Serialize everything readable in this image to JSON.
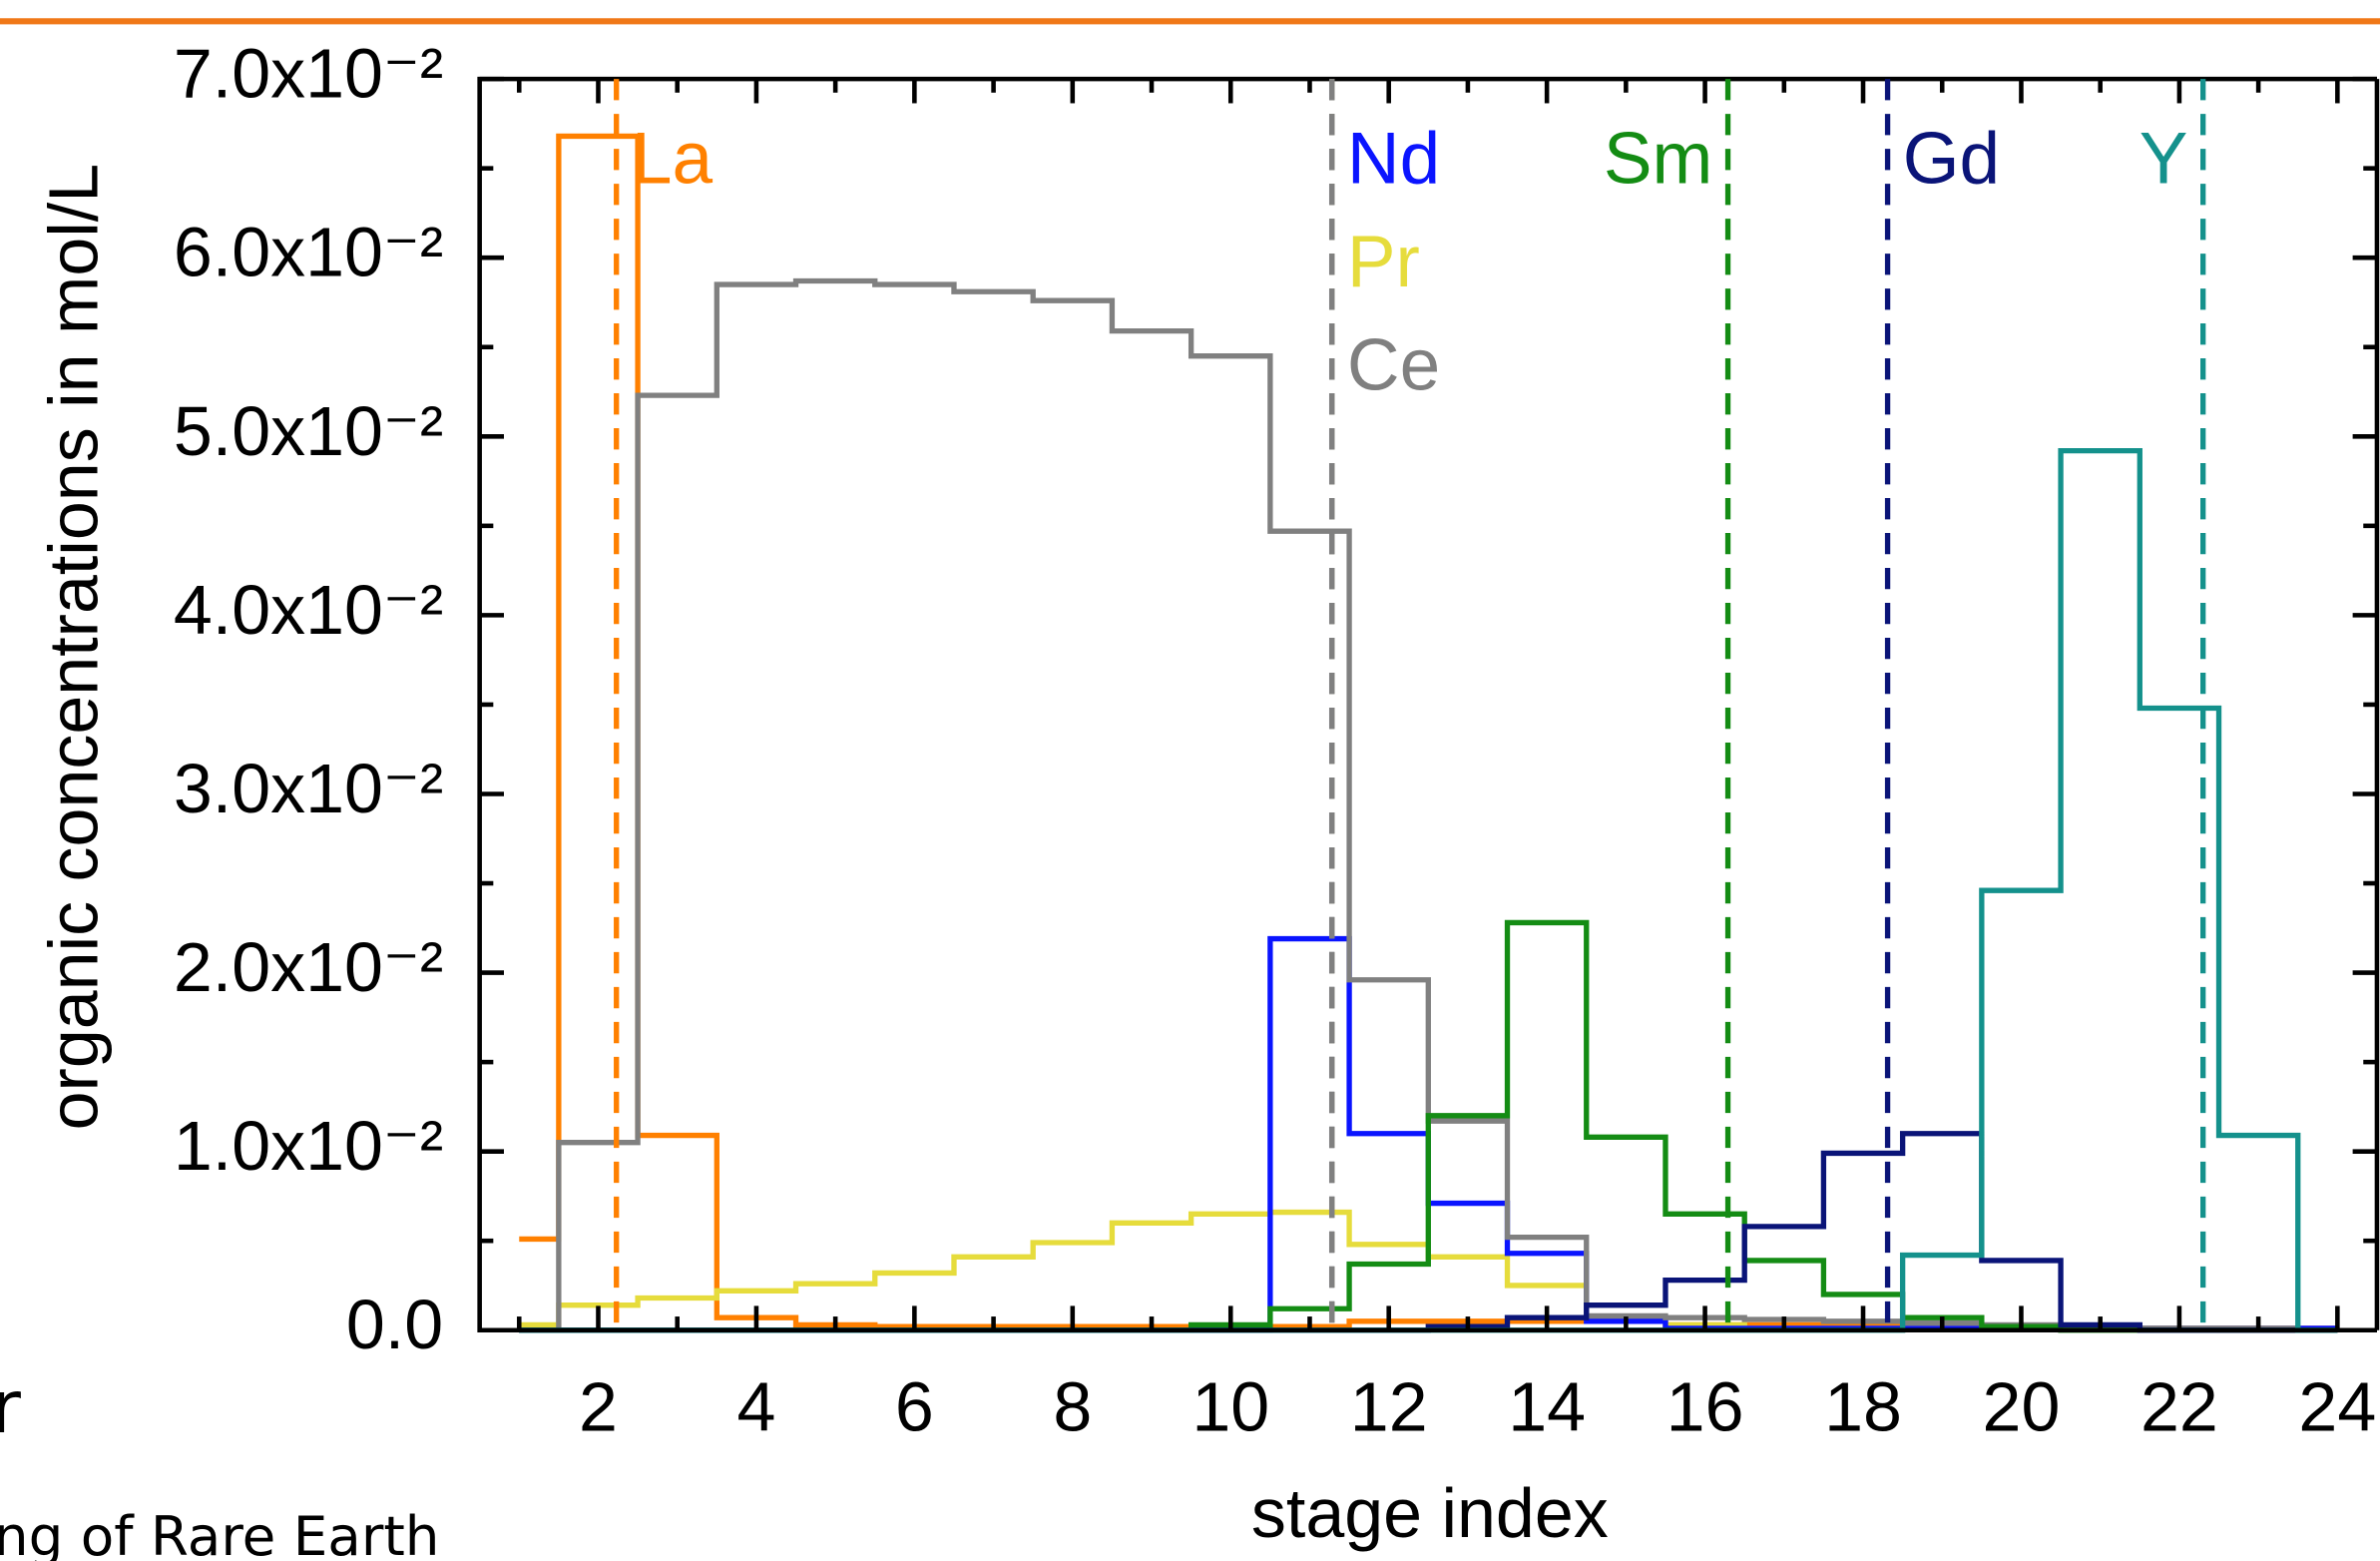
{
  "slide_text": [
    "r",
    "ng of Rare Earth"
  ],
  "chart_data": {
    "type": "step",
    "x_label": "stage index",
    "y_label": "organic concentrations in mol/L",
    "x": [
      1,
      2,
      3,
      4,
      5,
      6,
      7,
      8,
      9,
      10,
      11,
      12,
      13,
      14,
      15,
      16,
      17,
      18,
      19,
      20,
      21,
      22,
      23,
      24
    ],
    "xlim": [
      0.5,
      24.5
    ],
    "xticks": [
      2,
      4,
      6,
      8,
      10,
      12,
      14,
      16,
      18,
      20,
      22,
      24
    ],
    "xminorticks": [
      1,
      3,
      5,
      7,
      9,
      11,
      13,
      15,
      17,
      19,
      21,
      23
    ],
    "ylim": [
      0,
      0.07
    ],
    "yticks": [
      {
        "value": 0,
        "label": "0.0"
      },
      {
        "value": 0.01,
        "label": "1.0x10⁻²"
      },
      {
        "value": 0.02,
        "label": "2.0x10⁻²"
      },
      {
        "value": 0.03,
        "label": "3.0x10⁻²"
      },
      {
        "value": 0.04,
        "label": "4.0x10⁻²"
      },
      {
        "value": 0.05,
        "label": "5.0x10⁻²"
      },
      {
        "value": 0.06,
        "label": "6.0x10⁻²"
      },
      {
        "value": 0.07,
        "label": "7.0x10⁻²"
      }
    ],
    "yminorticks": [
      0.005,
      0.015,
      0.025,
      0.035,
      0.045,
      0.055,
      0.065
    ],
    "series": [
      {
        "name": "La",
        "color": "#ff8000",
        "marker_x": 2.23,
        "values": [
          0.0051,
          0.0668,
          0.0109,
          0.0007,
          0.0003,
          0.0002,
          0.0002,
          0.0002,
          0.0002,
          0.0002,
          0.0002,
          0.0005,
          0.0005,
          0.0005,
          0.0005,
          0.0003,
          0.0003,
          0.0002,
          0.0002,
          0.0002,
          0.0001,
          0.0001,
          0.0001,
          0.0001
        ]
      },
      {
        "name": "Pr",
        "color": "#e6dc3c",
        "marker_x": 11.28,
        "values": [
          0.0003,
          0.0014,
          0.0018,
          0.0022,
          0.0026,
          0.0032,
          0.0041,
          0.0049,
          0.006,
          0.0065,
          0.0066,
          0.0048,
          0.0041,
          0.0025,
          0.0005,
          0.0003,
          0.0001,
          0.0001,
          0.0001,
          0.0001,
          0.0001,
          0.0001,
          0,
          0
        ]
      },
      {
        "name": "Nd",
        "color": "#0a14ff",
        "marker_x": 11.28,
        "values": [
          0,
          0,
          0,
          0,
          0,
          0,
          0,
          0,
          0,
          0,
          0.0219,
          0.011,
          0.0071,
          0.0043,
          0.0005,
          0.0001,
          0.0001,
          0.0001,
          0.0001,
          0.0001,
          0.0001,
          0.0001,
          0.0001,
          0.0001
        ]
      },
      {
        "name": "Ce",
        "color": "#808080",
        "marker_x": 11.28,
        "values": [
          0,
          0.0105,
          0.0523,
          0.0585,
          0.0587,
          0.0585,
          0.0581,
          0.0576,
          0.0559,
          0.0545,
          0.0447,
          0.0196,
          0.0117,
          0.0052,
          0.0008,
          0.0007,
          0.0006,
          0.0005,
          0.0004,
          0.0003,
          0.0002,
          0.0001,
          0.0001,
          0
        ]
      },
      {
        "name": "Sm",
        "color": "#148c14",
        "marker_x": 16.29,
        "values": [
          0,
          0,
          0,
          0,
          0,
          0,
          0,
          0,
          0,
          0.0003,
          0.0012,
          0.0037,
          0.012,
          0.0228,
          0.0108,
          0.0065,
          0.0039,
          0.002,
          0.0007,
          0.0002,
          0,
          0,
          0,
          0
        ]
      },
      {
        "name": "Gd",
        "color": "#0a1478",
        "marker_x": 18.31,
        "values": [
          0,
          0,
          0,
          0,
          0,
          0,
          0,
          0,
          0,
          0,
          0,
          0,
          0.0002,
          0.0007,
          0.0014,
          0.0028,
          0.0058,
          0.0099,
          0.011,
          0.0039,
          0.0003,
          0,
          0,
          0
        ]
      },
      {
        "name": "Y",
        "color": "#14918c",
        "marker_x": 22.3,
        "values": [
          0,
          0,
          0,
          0,
          0,
          0,
          0,
          0,
          0,
          0,
          0,
          0,
          0,
          0,
          0,
          0,
          0,
          0,
          0.0042,
          0.0246,
          0.0492,
          0.0348,
          0.0109,
          0
        ]
      }
    ]
  }
}
